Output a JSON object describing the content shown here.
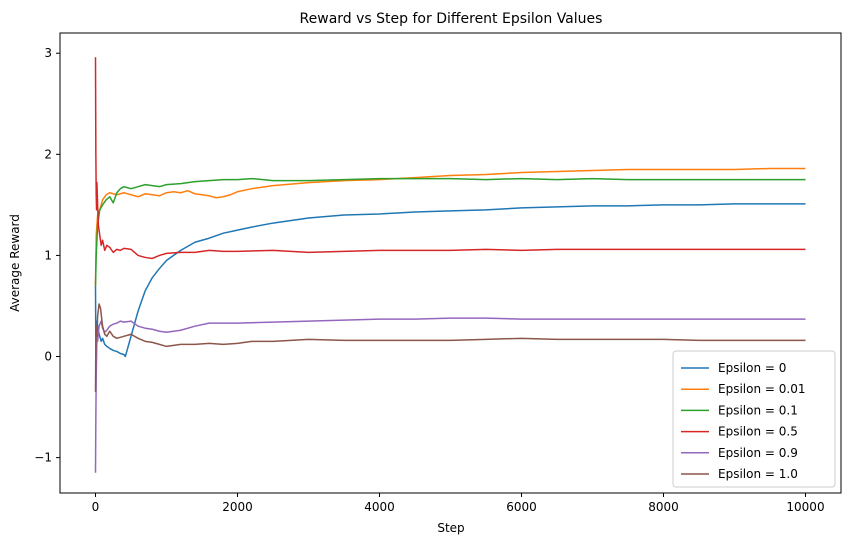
{
  "chart_data": {
    "type": "line",
    "title": "Reward vs Step for Different Epsilon Values",
    "xlabel": "Step",
    "ylabel": "Average Reward",
    "xlim": [
      -500,
      10500
    ],
    "ylim": [
      -1.35,
      3.2
    ],
    "xticks": [
      0,
      2000,
      4000,
      6000,
      8000,
      10000
    ],
    "yticks": [
      -1,
      0,
      1,
      2,
      3
    ],
    "xtick_labels": [
      "0",
      "2000",
      "4000",
      "6000",
      "8000",
      "10000"
    ],
    "ytick_labels": [
      "−1",
      "0",
      "1",
      "2",
      "3"
    ],
    "grid": false,
    "legend_position": "lower-right",
    "series": [
      {
        "name": "Epsilon = 0",
        "color": "#1f77b4",
        "points": [
          [
            0,
            0.7
          ],
          [
            5,
            0.1
          ],
          [
            10,
            0.0
          ],
          [
            20,
            0.35
          ],
          [
            40,
            0.25
          ],
          [
            60,
            0.2
          ],
          [
            80,
            0.15
          ],
          [
            100,
            0.18
          ],
          [
            130,
            0.12
          ],
          [
            160,
            0.1
          ],
          [
            200,
            0.08
          ],
          [
            250,
            0.06
          ],
          [
            300,
            0.05
          ],
          [
            350,
            0.03
          ],
          [
            400,
            0.02
          ],
          [
            420,
            0.0
          ],
          [
            500,
            0.2
          ],
          [
            600,
            0.45
          ],
          [
            700,
            0.65
          ],
          [
            800,
            0.78
          ],
          [
            900,
            0.87
          ],
          [
            1000,
            0.95
          ],
          [
            1100,
            1.0
          ],
          [
            1200,
            1.05
          ],
          [
            1400,
            1.13
          ],
          [
            1600,
            1.17
          ],
          [
            1800,
            1.22
          ],
          [
            2000,
            1.25
          ],
          [
            2200,
            1.28
          ],
          [
            2500,
            1.32
          ],
          [
            3000,
            1.37
          ],
          [
            3500,
            1.4
          ],
          [
            4000,
            1.41
          ],
          [
            4500,
            1.43
          ],
          [
            5000,
            1.44
          ],
          [
            5500,
            1.45
          ],
          [
            6000,
            1.47
          ],
          [
            6500,
            1.48
          ],
          [
            7000,
            1.49
          ],
          [
            7500,
            1.49
          ],
          [
            8000,
            1.5
          ],
          [
            8500,
            1.5
          ],
          [
            9000,
            1.51
          ],
          [
            9500,
            1.51
          ],
          [
            10000,
            1.51
          ]
        ]
      },
      {
        "name": "Epsilon = 0.01",
        "color": "#ff7f0e",
        "points": [
          [
            0,
            0.7
          ],
          [
            10,
            1.2
          ],
          [
            30,
            1.4
          ],
          [
            60,
            1.45
          ],
          [
            100,
            1.55
          ],
          [
            150,
            1.6
          ],
          [
            200,
            1.62
          ],
          [
            300,
            1.6
          ],
          [
            400,
            1.62
          ],
          [
            500,
            1.6
          ],
          [
            600,
            1.58
          ],
          [
            700,
            1.61
          ],
          [
            800,
            1.6
          ],
          [
            900,
            1.59
          ],
          [
            1000,
            1.62
          ],
          [
            1100,
            1.63
          ],
          [
            1200,
            1.62
          ],
          [
            1300,
            1.64
          ],
          [
            1400,
            1.61
          ],
          [
            1500,
            1.6
          ],
          [
            1600,
            1.59
          ],
          [
            1700,
            1.57
          ],
          [
            1800,
            1.58
          ],
          [
            1900,
            1.6
          ],
          [
            2000,
            1.63
          ],
          [
            2200,
            1.66
          ],
          [
            2500,
            1.69
          ],
          [
            3000,
            1.72
          ],
          [
            3500,
            1.74
          ],
          [
            4000,
            1.75
          ],
          [
            4500,
            1.77
          ],
          [
            5000,
            1.79
          ],
          [
            5500,
            1.8
          ],
          [
            6000,
            1.82
          ],
          [
            6500,
            1.83
          ],
          [
            7000,
            1.84
          ],
          [
            7500,
            1.85
          ],
          [
            8000,
            1.85
          ],
          [
            8500,
            1.85
          ],
          [
            9000,
            1.85
          ],
          [
            9500,
            1.86
          ],
          [
            10000,
            1.86
          ]
        ]
      },
      {
        "name": "Epsilon = 0.1",
        "color": "#2ca02c",
        "points": [
          [
            0,
            0.7
          ],
          [
            10,
            1.0
          ],
          [
            30,
            1.3
          ],
          [
            60,
            1.45
          ],
          [
            100,
            1.5
          ],
          [
            150,
            1.55
          ],
          [
            200,
            1.58
          ],
          [
            250,
            1.52
          ],
          [
            300,
            1.62
          ],
          [
            350,
            1.66
          ],
          [
            400,
            1.68
          ],
          [
            500,
            1.66
          ],
          [
            600,
            1.68
          ],
          [
            700,
            1.7
          ],
          [
            800,
            1.69
          ],
          [
            900,
            1.68
          ],
          [
            1000,
            1.7
          ],
          [
            1200,
            1.71
          ],
          [
            1400,
            1.73
          ],
          [
            1600,
            1.74
          ],
          [
            1800,
            1.75
          ],
          [
            2000,
            1.75
          ],
          [
            2200,
            1.76
          ],
          [
            2500,
            1.74
          ],
          [
            3000,
            1.74
          ],
          [
            3500,
            1.75
          ],
          [
            4000,
            1.76
          ],
          [
            4500,
            1.76
          ],
          [
            5000,
            1.76
          ],
          [
            5500,
            1.75
          ],
          [
            6000,
            1.76
          ],
          [
            6500,
            1.75
          ],
          [
            7000,
            1.76
          ],
          [
            7500,
            1.75
          ],
          [
            8000,
            1.75
          ],
          [
            8500,
            1.75
          ],
          [
            9000,
            1.75
          ],
          [
            9500,
            1.75
          ],
          [
            10000,
            1.75
          ]
        ]
      },
      {
        "name": "Epsilon = 0.5",
        "color": "#d62728",
        "points": [
          [
            0,
            2.96
          ],
          [
            5,
            2.0
          ],
          [
            10,
            1.6
          ],
          [
            15,
            1.45
          ],
          [
            20,
            1.72
          ],
          [
            30,
            1.5
          ],
          [
            40,
            1.3
          ],
          [
            60,
            1.2
          ],
          [
            80,
            1.1
          ],
          [
            100,
            1.15
          ],
          [
            130,
            1.05
          ],
          [
            160,
            1.1
          ],
          [
            200,
            1.08
          ],
          [
            250,
            1.03
          ],
          [
            300,
            1.06
          ],
          [
            350,
            1.05
          ],
          [
            400,
            1.07
          ],
          [
            500,
            1.06
          ],
          [
            600,
            1.0
          ],
          [
            700,
            0.98
          ],
          [
            800,
            0.97
          ],
          [
            900,
            1.0
          ],
          [
            1000,
            1.02
          ],
          [
            1200,
            1.03
          ],
          [
            1400,
            1.03
          ],
          [
            1600,
            1.05
          ],
          [
            1800,
            1.04
          ],
          [
            2000,
            1.04
          ],
          [
            2500,
            1.05
          ],
          [
            3000,
            1.03
          ],
          [
            3500,
            1.04
          ],
          [
            4000,
            1.05
          ],
          [
            4500,
            1.05
          ],
          [
            5000,
            1.05
          ],
          [
            5500,
            1.06
          ],
          [
            6000,
            1.05
          ],
          [
            6500,
            1.06
          ],
          [
            7000,
            1.06
          ],
          [
            7500,
            1.06
          ],
          [
            8000,
            1.06
          ],
          [
            8500,
            1.06
          ],
          [
            9000,
            1.06
          ],
          [
            9500,
            1.06
          ],
          [
            10000,
            1.06
          ]
        ]
      },
      {
        "name": "Epsilon = 0.9",
        "color": "#9467bd",
        "points": [
          [
            0,
            -1.15
          ],
          [
            5,
            -0.6
          ],
          [
            10,
            -0.2
          ],
          [
            20,
            0.2
          ],
          [
            30,
            0.15
          ],
          [
            50,
            0.3
          ],
          [
            80,
            0.35
          ],
          [
            100,
            0.28
          ],
          [
            130,
            0.24
          ],
          [
            160,
            0.26
          ],
          [
            200,
            0.3
          ],
          [
            250,
            0.32
          ],
          [
            300,
            0.33
          ],
          [
            350,
            0.35
          ],
          [
            400,
            0.34
          ],
          [
            500,
            0.35
          ],
          [
            600,
            0.3
          ],
          [
            700,
            0.28
          ],
          [
            800,
            0.27
          ],
          [
            900,
            0.25
          ],
          [
            1000,
            0.24
          ],
          [
            1200,
            0.26
          ],
          [
            1400,
            0.3
          ],
          [
            1600,
            0.33
          ],
          [
            1800,
            0.33
          ],
          [
            2000,
            0.33
          ],
          [
            2500,
            0.34
          ],
          [
            3000,
            0.35
          ],
          [
            3500,
            0.36
          ],
          [
            4000,
            0.37
          ],
          [
            4500,
            0.37
          ],
          [
            5000,
            0.38
          ],
          [
            5500,
            0.38
          ],
          [
            6000,
            0.37
          ],
          [
            6500,
            0.37
          ],
          [
            7000,
            0.37
          ],
          [
            7500,
            0.37
          ],
          [
            8000,
            0.37
          ],
          [
            8500,
            0.37
          ],
          [
            9000,
            0.37
          ],
          [
            9500,
            0.37
          ],
          [
            10000,
            0.37
          ]
        ]
      },
      {
        "name": "Epsilon = 1.0",
        "color": "#8c564b",
        "points": [
          [
            0,
            -0.35
          ],
          [
            5,
            0.1
          ],
          [
            10,
            0.3
          ],
          [
            20,
            0.2
          ],
          [
            30,
            0.4
          ],
          [
            50,
            0.52
          ],
          [
            70,
            0.48
          ],
          [
            100,
            0.3
          ],
          [
            130,
            0.22
          ],
          [
            160,
            0.2
          ],
          [
            200,
            0.25
          ],
          [
            250,
            0.2
          ],
          [
            300,
            0.18
          ],
          [
            400,
            0.2
          ],
          [
            500,
            0.22
          ],
          [
            600,
            0.18
          ],
          [
            700,
            0.15
          ],
          [
            800,
            0.14
          ],
          [
            900,
            0.12
          ],
          [
            1000,
            0.1
          ],
          [
            1200,
            0.12
          ],
          [
            1400,
            0.12
          ],
          [
            1600,
            0.13
          ],
          [
            1800,
            0.12
          ],
          [
            2000,
            0.13
          ],
          [
            2200,
            0.15
          ],
          [
            2500,
            0.15
          ],
          [
            3000,
            0.17
          ],
          [
            3500,
            0.16
          ],
          [
            4000,
            0.16
          ],
          [
            4500,
            0.16
          ],
          [
            5000,
            0.16
          ],
          [
            5500,
            0.17
          ],
          [
            6000,
            0.18
          ],
          [
            6500,
            0.17
          ],
          [
            7000,
            0.17
          ],
          [
            7500,
            0.17
          ],
          [
            8000,
            0.17
          ],
          [
            8500,
            0.16
          ],
          [
            9000,
            0.16
          ],
          [
            9500,
            0.16
          ],
          [
            10000,
            0.16
          ]
        ]
      }
    ]
  }
}
